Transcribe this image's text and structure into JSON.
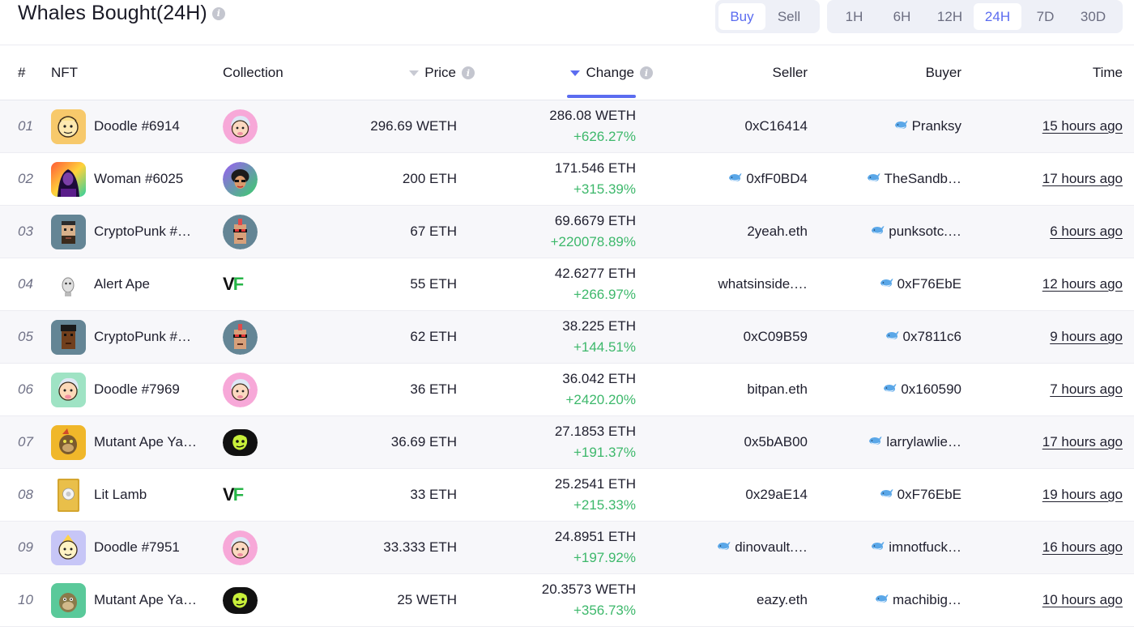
{
  "header": {
    "title": "Whales Bought(24H)",
    "side_tabs": [
      {
        "label": "Buy",
        "active": true
      },
      {
        "label": "Sell",
        "active": false
      }
    ],
    "period_tabs": [
      {
        "label": "1H",
        "active": false
      },
      {
        "label": "6H",
        "active": false
      },
      {
        "label": "12H",
        "active": false
      },
      {
        "label": "24H",
        "active": true
      },
      {
        "label": "7D",
        "active": false
      },
      {
        "label": "30D",
        "active": false
      }
    ]
  },
  "columns": {
    "index": "#",
    "nft": "NFT",
    "collection": "Collection",
    "price": "Price",
    "change": "Change",
    "seller": "Seller",
    "buyer": "Buyer",
    "time": "Time"
  },
  "rows": [
    {
      "index": "01",
      "nft": "Doodle #6914",
      "thumb_icon": "doodle-yellow-avatar",
      "collection_icon": "doodles-logo",
      "price": "296.69 WETH",
      "change_value": "286.08 WETH",
      "change_pct": "+626.27%",
      "seller": "0xC16414",
      "seller_whale": false,
      "buyer": "Pranksy",
      "buyer_whale": true,
      "time": "15 hours ago"
    },
    {
      "index": "02",
      "nft": "Woman #6025",
      "thumb_icon": "woman-avatar",
      "collection_icon": "world-of-women-logo",
      "price": "200 ETH",
      "change_value": "171.546 ETH",
      "change_pct": "+315.39%",
      "seller": "0xfF0BD4",
      "seller_whale": true,
      "buyer": "TheSandb…",
      "buyer_whale": true,
      "time": "17 hours ago"
    },
    {
      "index": "03",
      "nft": "CryptoPunk #…",
      "thumb_icon": "cryptopunk-avatar",
      "collection_icon": "cryptopunks-logo",
      "price": "67 ETH",
      "change_value": "69.6679 ETH",
      "change_pct": "+220078.89%",
      "seller": "2yeah.eth",
      "seller_whale": false,
      "buyer": "punksotc.…",
      "buyer_whale": true,
      "time": "6 hours ago"
    },
    {
      "index": "04",
      "nft": "Alert Ape",
      "thumb_icon": "alert-ape-avatar",
      "collection_icon": "veefriends-logo",
      "price": "55 ETH",
      "change_value": "42.6277 ETH",
      "change_pct": "+266.97%",
      "seller": "whatsinside.…",
      "seller_whale": false,
      "buyer": "0xF76EbE",
      "buyer_whale": true,
      "time": "12 hours ago"
    },
    {
      "index": "05",
      "nft": "CryptoPunk #…",
      "thumb_icon": "cryptopunk-dark-avatar",
      "collection_icon": "cryptopunks-logo",
      "price": "62 ETH",
      "change_value": "38.225 ETH",
      "change_pct": "+144.51%",
      "seller": "0xC09B59",
      "seller_whale": false,
      "buyer": "0x7811c6",
      "buyer_whale": true,
      "time": "9 hours ago"
    },
    {
      "index": "06",
      "nft": "Doodle #7969",
      "thumb_icon": "doodle-green-avatar",
      "collection_icon": "doodles-logo",
      "price": "36 ETH",
      "change_value": "36.042 ETH",
      "change_pct": "+2420.20%",
      "seller": "bitpan.eth",
      "seller_whale": false,
      "buyer": "0x160590",
      "buyer_whale": true,
      "time": "7 hours ago"
    },
    {
      "index": "07",
      "nft": "Mutant Ape Ya…",
      "thumb_icon": "mutant-ape-avatar",
      "collection_icon": "mutant-ape-logo",
      "price": "36.69 ETH",
      "change_value": "27.1853 ETH",
      "change_pct": "+191.37%",
      "seller": "0x5bAB00",
      "seller_whale": false,
      "buyer": "larrylawlie…",
      "buyer_whale": true,
      "time": "17 hours ago"
    },
    {
      "index": "08",
      "nft": "Lit Lamb",
      "thumb_icon": "lit-lamb-card",
      "collection_icon": "veefriends-logo",
      "price": "33 ETH",
      "change_value": "25.2541 ETH",
      "change_pct": "+215.33%",
      "seller": "0x29aE14",
      "seller_whale": false,
      "buyer": "0xF76EbE",
      "buyer_whale": true,
      "time": "19 hours ago"
    },
    {
      "index": "09",
      "nft": "Doodle #7951",
      "thumb_icon": "doodle-purple-avatar",
      "collection_icon": "doodles-logo",
      "price": "33.333 ETH",
      "change_value": "24.8951 ETH",
      "change_pct": "+197.92%",
      "seller": "dinovault.…",
      "seller_whale": true,
      "buyer": "imnotfuck…",
      "buyer_whale": true,
      "time": "16 hours ago"
    },
    {
      "index": "10",
      "nft": "Mutant Ape Ya…",
      "thumb_icon": "mutant-ape-green-avatar",
      "collection_icon": "mutant-ape-logo",
      "price": "25 WETH",
      "change_value": "20.3573 WETH",
      "change_pct": "+356.73%",
      "seller": "eazy.eth",
      "seller_whale": false,
      "buyer": "machibig…",
      "buyer_whale": true,
      "time": "10 hours ago"
    }
  ],
  "colors": {
    "accent": "#5b6cf0",
    "positive": "#3db86b",
    "row_shade": "#f7f7fa",
    "segment_bg": "#eef0f7"
  }
}
